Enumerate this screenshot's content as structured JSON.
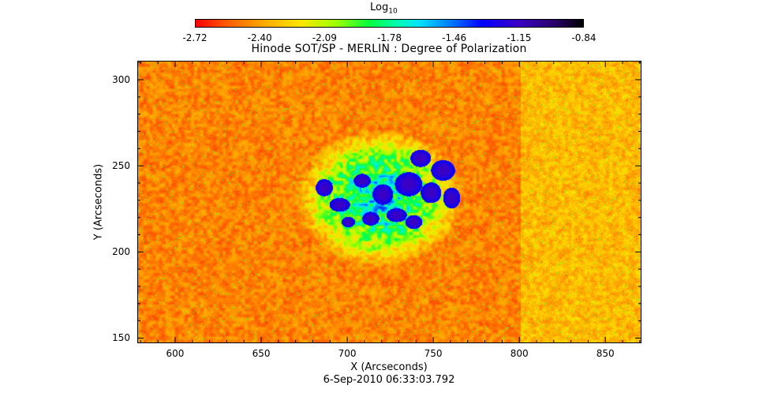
{
  "chart_data": {
    "type": "heatmap",
    "title": "Hinode SOT/SP - MERLIN : Degree of Polarization",
    "xlabel": "X (Arcseconds)",
    "ylabel": "Y (Arcseconds)",
    "timestamp": "6-Sep-2010 06:33:03.792",
    "xlim": [
      578,
      871
    ],
    "ylim": [
      147,
      311
    ],
    "x_ticks": [
      600,
      650,
      700,
      750,
      800,
      850
    ],
    "y_ticks": [
      150,
      200,
      250,
      300
    ],
    "colorbar": {
      "label_main": "Log",
      "label_sub": "10",
      "ticks": [
        "-2.72",
        "-2.40",
        "-2.09",
        "-1.78",
        "-1.46",
        "-1.15",
        "-0.84"
      ],
      "range": [
        -2.72,
        -0.84
      ]
    },
    "colors": {
      "background_low": "#ff2000",
      "mid": "#00ff80",
      "high": "#0000c8"
    }
  }
}
